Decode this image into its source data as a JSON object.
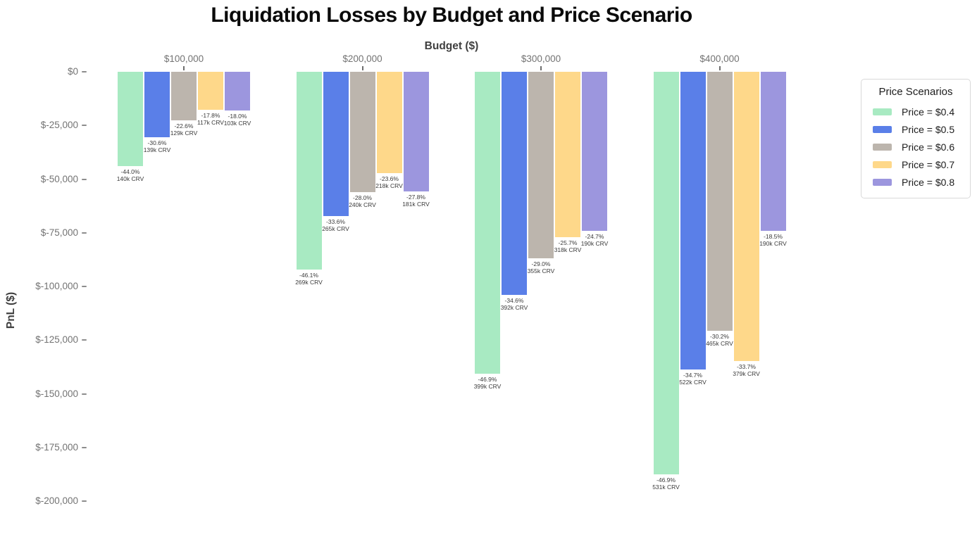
{
  "title": "Liquidation Losses by Budget and Price Scenario",
  "legend": {
    "title": "Price Scenarios",
    "entries": [
      {
        "label": "Price = $0.4",
        "color": "#a8eac2"
      },
      {
        "label": "Price = $0.5",
        "color": "#5a7fe8"
      },
      {
        "label": "Price = $0.6",
        "color": "#bcb5ad"
      },
      {
        "label": "Price = $0.7",
        "color": "#fed88a"
      },
      {
        "label": "Price = $0.8",
        "color": "#9c96de"
      }
    ]
  },
  "chart_data": {
    "type": "bar",
    "title": "Liquidation Losses by Budget and Price Scenario",
    "xlabel": "Budget ($)",
    "ylabel": "PnL ($)",
    "ylim": [
      -200000,
      0
    ],
    "y_tick_step": 25000,
    "grid": false,
    "legend_position": "right",
    "categories": [
      "$100,000",
      "$200,000",
      "$300,000",
      "$400,000"
    ],
    "budgets_usd": [
      100000,
      200000,
      300000,
      400000
    ],
    "y_ticks": [
      "$0",
      "$-25,000",
      "$-50,000",
      "$-75,000",
      "$-100,000",
      "$-125,000",
      "$-150,000",
      "$-175,000",
      "$-200,000"
    ],
    "series": [
      {
        "name": "Price = $0.4",
        "color": "#a8eac2",
        "pnl_usd": [
          -44000,
          -92200,
          -140700,
          -187600
        ],
        "pct_labels": [
          "-44.0%",
          "-46.1%",
          "-46.9%",
          "-46.9%"
        ],
        "crv_labels": [
          "140k CRV",
          "269k CRV",
          "399k CRV",
          "531k CRV"
        ]
      },
      {
        "name": "Price = $0.5",
        "color": "#5a7fe8",
        "pnl_usd": [
          -30600,
          -67200,
          -103800,
          -138800
        ],
        "pct_labels": [
          "-30.6%",
          "-33.6%",
          "-34.6%",
          "-34.7%"
        ],
        "crv_labels": [
          "139k CRV",
          "265k CRV",
          "392k CRV",
          "522k CRV"
        ]
      },
      {
        "name": "Price = $0.6",
        "color": "#bcb5ad",
        "pnl_usd": [
          -22600,
          -56000,
          -87000,
          -120800
        ],
        "pct_labels": [
          "-22.6%",
          "-28.0%",
          "-29.0%",
          "-30.2%"
        ],
        "crv_labels": [
          "129k CRV",
          "240k CRV",
          "355k CRV",
          "465k CRV"
        ]
      },
      {
        "name": "Price = $0.7",
        "color": "#fed88a",
        "pnl_usd": [
          -17800,
          -47200,
          -77100,
          -134800
        ],
        "pct_labels": [
          "-17.8%",
          "-23.6%",
          "-25.7%",
          "-33.7%"
        ],
        "crv_labels": [
          "117k CRV",
          "218k CRV",
          "318k CRV",
          "379k CRV"
        ]
      },
      {
        "name": "Price = $0.8",
        "color": "#9c96de",
        "pnl_usd": [
          -18000,
          -55600,
          -74100,
          -74000
        ],
        "pct_labels": [
          "-18.0%",
          "-27.8%",
          "-24.7%",
          "-18.5%"
        ],
        "crv_labels": [
          "103k CRV",
          "181k CRV",
          "190k CRV",
          "190k CRV"
        ]
      }
    ]
  }
}
